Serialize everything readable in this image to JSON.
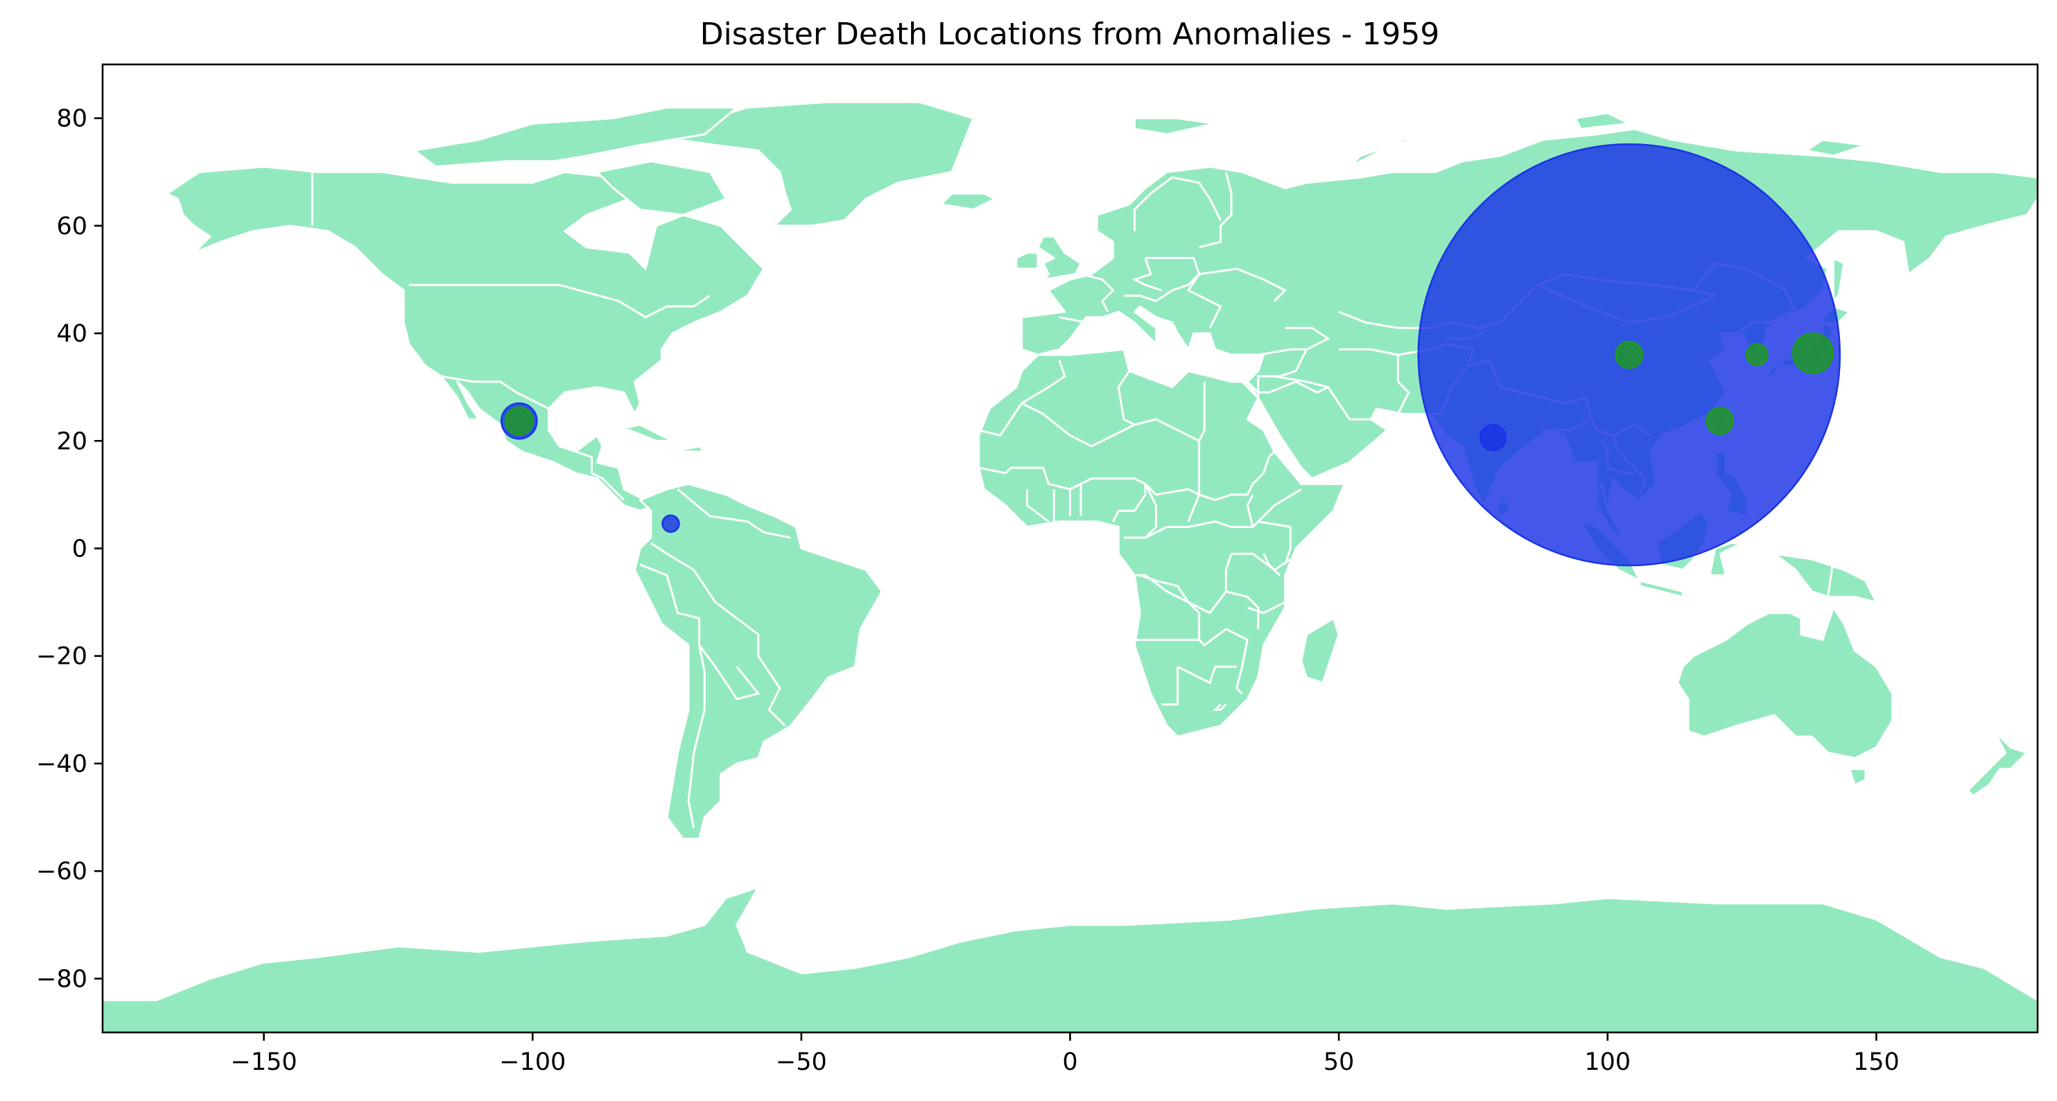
{
  "chart_data": {
    "type": "scatter",
    "title": "Disaster Death Locations from Anomalies - 1959",
    "xlabel": "",
    "ylabel": "",
    "xlim": [
      -180,
      180
    ],
    "ylim": [
      -90,
      90
    ],
    "xticks": [
      -150,
      -100,
      -50,
      0,
      50,
      100,
      150
    ],
    "yticks": [
      80,
      60,
      40,
      20,
      0,
      -20,
      -40,
      -60,
      -80
    ],
    "xtick_labels": [
      "−150",
      "−100",
      "−50",
      "0",
      "50",
      "100",
      "150"
    ],
    "ytick_labels": [
      "80",
      "60",
      "40",
      "20",
      "0",
      "−20",
      "−40",
      "−60",
      "−80"
    ],
    "grid": false,
    "land_color": "#93e9bf",
    "border_color": "#ffffff",
    "series": [
      {
        "color": "#1a33e6",
        "points": [
          {
            "lon": 104.0,
            "lat": 36.0,
            "size": 38
          },
          {
            "lon": -102.5,
            "lat": 23.7,
            "size": 3.2
          },
          {
            "lon": 78.7,
            "lat": 20.6,
            "size": 2.3
          },
          {
            "lon": -74.3,
            "lat": 4.6,
            "size": 1.5
          }
        ]
      },
      {
        "color": "#1f9a1f",
        "points": [
          {
            "lon": 104.0,
            "lat": 36.0,
            "size": 2.4
          },
          {
            "lon": -102.5,
            "lat": 23.7,
            "size": 2.5
          },
          {
            "lon": 138.2,
            "lat": 36.3,
            "size": 3.6
          },
          {
            "lon": 127.8,
            "lat": 36.0,
            "size": 1.9
          },
          {
            "lon": 120.9,
            "lat": 23.7,
            "size": 2.4
          }
        ]
      }
    ]
  }
}
